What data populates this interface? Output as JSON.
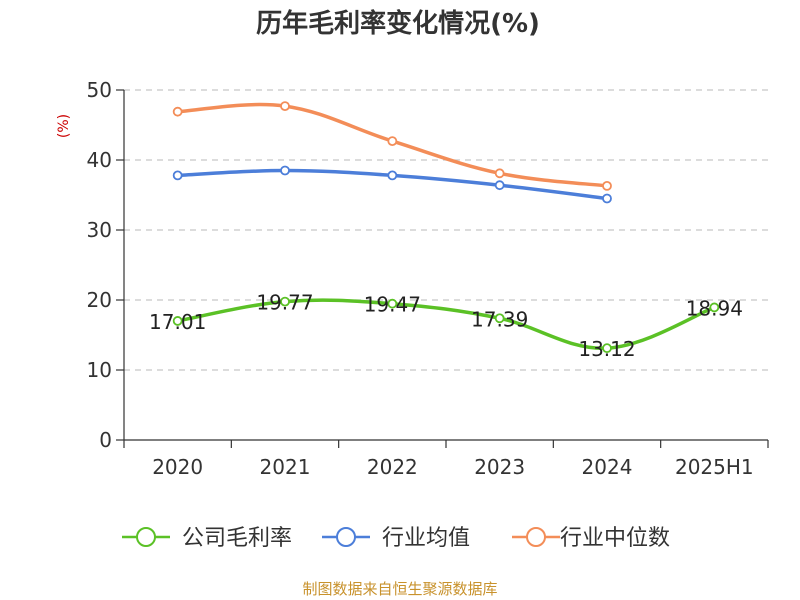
{
  "chart_data": {
    "type": "line",
    "title": "历年毛利率变化情况(%)",
    "ylabel": "(%)",
    "xlabel": "",
    "categories": [
      "2020",
      "2021",
      "2022",
      "2023",
      "2024",
      "2025H1"
    ],
    "ylim": [
      0,
      50
    ],
    "yticks": [
      0,
      10,
      20,
      30,
      40,
      50
    ],
    "grid": true,
    "legend_position": "bottom",
    "series": [
      {
        "name": "公司毛利率",
        "color": "#5bc126",
        "values": [
          17.01,
          19.77,
          19.47,
          17.39,
          13.12,
          18.94
        ],
        "labels": [
          "17.01",
          "19.77",
          "19.47",
          "17.39",
          "13.12",
          "18.94"
        ]
      },
      {
        "name": "行业均值",
        "color": "#4c7ed9",
        "values": [
          37.8,
          38.5,
          37.8,
          36.4,
          34.5,
          null
        ]
      },
      {
        "name": "行业中位数",
        "color": "#f38d58",
        "values": [
          46.9,
          47.7,
          42.7,
          38.1,
          36.3,
          null
        ]
      }
    ],
    "source": "制图数据来自恒生聚源数据库"
  }
}
